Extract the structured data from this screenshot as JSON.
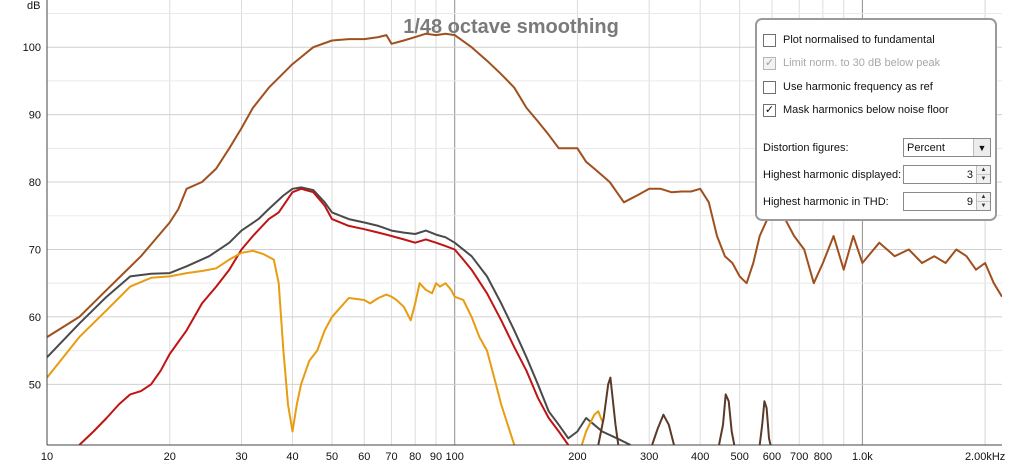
{
  "chart_data": {
    "type": "line",
    "title": "1/48 octave smoothing",
    "ylabel": "dB",
    "x_scale": "log",
    "xlim": [
      10,
      2200
    ],
    "ylim": [
      41,
      107
    ],
    "grid": true,
    "y_ticks": [
      50,
      60,
      70,
      80,
      90,
      100
    ],
    "x_ticks": [
      {
        "v": 10,
        "label": "10"
      },
      {
        "v": 20,
        "label": "20"
      },
      {
        "v": 30,
        "label": "30"
      },
      {
        "v": 40,
        "label": "40"
      },
      {
        "v": 50,
        "label": "50"
      },
      {
        "v": 60,
        "label": "60"
      },
      {
        "v": 70,
        "label": "70"
      },
      {
        "v": 80,
        "label": "80"
      },
      {
        "v": 90,
        "label": "90"
      },
      {
        "v": 100,
        "label": "100"
      },
      {
        "v": 200,
        "label": "200"
      },
      {
        "v": 300,
        "label": "300"
      },
      {
        "v": 400,
        "label": "400"
      },
      {
        "v": 500,
        "label": "500"
      },
      {
        "v": 600,
        "label": "600"
      },
      {
        "v": 700,
        "label": "700"
      },
      {
        "v": 800,
        "label": "800"
      },
      {
        "v": 1000,
        "label": "1.0k"
      },
      {
        "v": 2000,
        "label": "2.00kHz"
      }
    ],
    "series": [
      {
        "color": "#a0501e",
        "points": [
          [
            10,
            57
          ],
          [
            12,
            60
          ],
          [
            14,
            64
          ],
          [
            17,
            69
          ],
          [
            20,
            74
          ],
          [
            21,
            76
          ],
          [
            22,
            79
          ],
          [
            24,
            80
          ],
          [
            26,
            82
          ],
          [
            28,
            85
          ],
          [
            30,
            88
          ],
          [
            32,
            91
          ],
          [
            35,
            94
          ],
          [
            40,
            97.5
          ],
          [
            45,
            100
          ],
          [
            50,
            101
          ],
          [
            55,
            101.2
          ],
          [
            60,
            101.2
          ],
          [
            65,
            101.5
          ],
          [
            68,
            101.8
          ],
          [
            70,
            100.5
          ],
          [
            75,
            101
          ],
          [
            80,
            101.5
          ],
          [
            85,
            102
          ],
          [
            90,
            101.8
          ],
          [
            95,
            102
          ],
          [
            100,
            101.8
          ],
          [
            110,
            100
          ],
          [
            120,
            98
          ],
          [
            130,
            96
          ],
          [
            140,
            94
          ],
          [
            150,
            91
          ],
          [
            160,
            89
          ],
          [
            170,
            87
          ],
          [
            180,
            85
          ],
          [
            190,
            85
          ],
          [
            200,
            85
          ],
          [
            210,
            83
          ],
          [
            220,
            82
          ],
          [
            240,
            80
          ],
          [
            260,
            77
          ],
          [
            280,
            78
          ],
          [
            300,
            79
          ],
          [
            320,
            79
          ],
          [
            340,
            78.5
          ],
          [
            360,
            78.6
          ],
          [
            380,
            78.6
          ],
          [
            400,
            79
          ],
          [
            420,
            77
          ],
          [
            440,
            72
          ],
          [
            460,
            69
          ],
          [
            480,
            68
          ],
          [
            500,
            66
          ],
          [
            520,
            65
          ],
          [
            540,
            68
          ],
          [
            560,
            72
          ],
          [
            600,
            76
          ],
          [
            640,
            75
          ],
          [
            680,
            72
          ],
          [
            720,
            70
          ],
          [
            760,
            65
          ],
          [
            800,
            68
          ],
          [
            850,
            72
          ],
          [
            900,
            67
          ],
          [
            950,
            72
          ],
          [
            1000,
            68
          ],
          [
            1100,
            71
          ],
          [
            1200,
            69
          ],
          [
            1300,
            70
          ],
          [
            1400,
            68
          ],
          [
            1500,
            69
          ],
          [
            1600,
            68
          ],
          [
            1700,
            70
          ],
          [
            1800,
            69
          ],
          [
            1900,
            67
          ],
          [
            2000,
            68
          ],
          [
            2100,
            65
          ],
          [
            2200,
            63
          ]
        ]
      },
      {
        "color": "#4a4a4a",
        "points": [
          [
            10,
            54
          ],
          [
            12,
            59
          ],
          [
            14,
            63
          ],
          [
            16,
            66
          ],
          [
            18,
            66.4
          ],
          [
            20,
            66.5
          ],
          [
            22,
            67.5
          ],
          [
            25,
            69
          ],
          [
            28,
            71
          ],
          [
            30,
            72.8
          ],
          [
            33,
            74.5
          ],
          [
            35,
            76
          ],
          [
            38,
            78
          ],
          [
            40,
            79
          ],
          [
            42,
            79.2
          ],
          [
            45,
            78.8
          ],
          [
            48,
            77
          ],
          [
            50,
            75.5
          ],
          [
            55,
            74.5
          ],
          [
            60,
            74
          ],
          [
            65,
            73.5
          ],
          [
            70,
            72.8
          ],
          [
            75,
            72.5
          ],
          [
            80,
            72.3
          ],
          [
            85,
            72.8
          ],
          [
            90,
            72.2
          ],
          [
            95,
            71.8
          ],
          [
            100,
            71
          ],
          [
            110,
            69
          ],
          [
            120,
            66
          ],
          [
            130,
            62
          ],
          [
            140,
            58
          ],
          [
            150,
            54
          ],
          [
            160,
            50
          ],
          [
            170,
            46
          ],
          [
            180,
            44
          ],
          [
            190,
            42
          ],
          [
            200,
            43
          ],
          [
            210,
            45
          ],
          [
            220,
            44
          ],
          [
            230,
            43
          ],
          [
            250,
            42
          ],
          [
            270,
            41
          ]
        ]
      },
      {
        "color": "#c01414",
        "points": [
          [
            12,
            41
          ],
          [
            13,
            43
          ],
          [
            14,
            45
          ],
          [
            15,
            47
          ],
          [
            16,
            48.5
          ],
          [
            17,
            49
          ],
          [
            18,
            50
          ],
          [
            19,
            52
          ],
          [
            20,
            54.5
          ],
          [
            22,
            58
          ],
          [
            24,
            62
          ],
          [
            26,
            64.5
          ],
          [
            28,
            67
          ],
          [
            30,
            70
          ],
          [
            32,
            72
          ],
          [
            35,
            74.5
          ],
          [
            37,
            75.5
          ],
          [
            40,
            78.5
          ],
          [
            42,
            79
          ],
          [
            45,
            78.5
          ],
          [
            48,
            76.5
          ],
          [
            50,
            74.5
          ],
          [
            55,
            73.5
          ],
          [
            60,
            73
          ],
          [
            65,
            72.5
          ],
          [
            70,
            72
          ],
          [
            75,
            71.5
          ],
          [
            80,
            71
          ],
          [
            85,
            71.5
          ],
          [
            90,
            71
          ],
          [
            95,
            70.5
          ],
          [
            100,
            70
          ],
          [
            105,
            68.5
          ],
          [
            110,
            67
          ],
          [
            120,
            63.5
          ],
          [
            130,
            59.5
          ],
          [
            140,
            55.5
          ],
          [
            150,
            52
          ],
          [
            160,
            48
          ],
          [
            170,
            45
          ],
          [
            180,
            43
          ],
          [
            190,
            41
          ]
        ]
      },
      {
        "color": "#e89c10",
        "points": [
          [
            10,
            51
          ],
          [
            12,
            57
          ],
          [
            14,
            61
          ],
          [
            16,
            64.5
          ],
          [
            18,
            65.8
          ],
          [
            20,
            66
          ],
          [
            22,
            66.5
          ],
          [
            24,
            66.8
          ],
          [
            26,
            67.2
          ],
          [
            28,
            68.5
          ],
          [
            30,
            69.5
          ],
          [
            32,
            69.8
          ],
          [
            34,
            69.3
          ],
          [
            36,
            68.5
          ],
          [
            37,
            65
          ],
          [
            38,
            55
          ],
          [
            39,
            47
          ],
          [
            40,
            43
          ],
          [
            41,
            47
          ],
          [
            42,
            50
          ],
          [
            44,
            53.5
          ],
          [
            46,
            55
          ],
          [
            48,
            58
          ],
          [
            50,
            60
          ],
          [
            55,
            62.8
          ],
          [
            60,
            62.5
          ],
          [
            62,
            62
          ],
          [
            65,
            62.8
          ],
          [
            68,
            63.3
          ],
          [
            70,
            63
          ],
          [
            72,
            62.5
          ],
          [
            75,
            61.5
          ],
          [
            78,
            59.5
          ],
          [
            80,
            62
          ],
          [
            82,
            65
          ],
          [
            85,
            64
          ],
          [
            88,
            63.5
          ],
          [
            90,
            65
          ],
          [
            92,
            64.5
          ],
          [
            95,
            65
          ],
          [
            98,
            64
          ],
          [
            100,
            63
          ],
          [
            105,
            62.5
          ],
          [
            110,
            60
          ],
          [
            115,
            57
          ],
          [
            120,
            55
          ],
          [
            125,
            51
          ],
          [
            130,
            47
          ],
          [
            140,
            41
          ]
        ]
      },
      {
        "color": "#e89c10",
        "points": [
          [
            205,
            41
          ],
          [
            210,
            43
          ],
          [
            220,
            45.5
          ],
          [
            225,
            46
          ],
          [
            230,
            44.5
          ]
        ]
      },
      {
        "color": "#5a3a28",
        "points": [
          [
            225,
            41
          ],
          [
            232,
            45
          ],
          [
            238,
            50
          ],
          [
            241,
            51
          ],
          [
            244,
            48
          ],
          [
            248,
            44
          ],
          [
            252,
            41
          ]
        ]
      },
      {
        "color": "#5a3a28",
        "points": [
          [
            305,
            41
          ],
          [
            315,
            43.5
          ],
          [
            325,
            45.5
          ],
          [
            335,
            44
          ],
          [
            345,
            41
          ]
        ]
      },
      {
        "color": "#5a3a28",
        "points": [
          [
            445,
            41
          ],
          [
            455,
            44
          ],
          [
            462,
            48.5
          ],
          [
            470,
            47.5
          ],
          [
            478,
            43
          ],
          [
            485,
            41
          ]
        ]
      },
      {
        "color": "#5a3a28",
        "points": [
          [
            560,
            41
          ],
          [
            568,
            44
          ],
          [
            575,
            47.5
          ],
          [
            582,
            46.5
          ],
          [
            590,
            42
          ],
          [
            595,
            41
          ]
        ]
      }
    ]
  },
  "panel": {
    "options": [
      {
        "label": "Plot normalised to fundamental",
        "checked": false,
        "disabled": false
      },
      {
        "label": "Limit norm. to 30 dB below peak",
        "checked": true,
        "disabled": true
      },
      {
        "label": "Use harmonic frequency as ref",
        "checked": false,
        "disabled": false
      },
      {
        "label": "Mask harmonics below noise floor",
        "checked": true,
        "disabled": false
      }
    ],
    "distortion_label": "Distortion figures:",
    "distortion_value": "Percent",
    "highest_displayed_label": "Highest harmonic displayed:",
    "highest_displayed_value": "3",
    "highest_thd_label": "Highest harmonic in THD:",
    "highest_thd_value": "9",
    "check_glyph": "✓",
    "arrow_glyph": "▼",
    "spin_up_glyph": "▲",
    "spin_down_glyph": "▼"
  }
}
